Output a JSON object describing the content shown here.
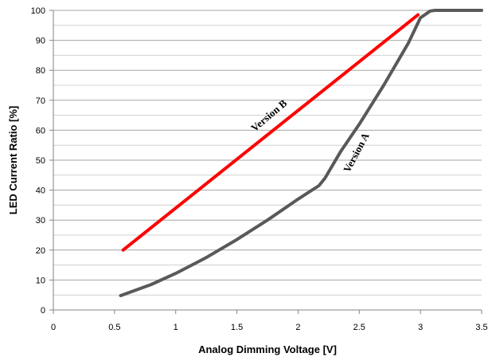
{
  "chart_data": {
    "type": "line",
    "title": "",
    "xlabel": "Analog Dimming Voltage  [V]",
    "ylabel": "LED Current Ratio [%]",
    "xlim": [
      0,
      3.5
    ],
    "ylim": [
      0,
      100
    ],
    "x_ticks": [
      "0",
      "0.5",
      "1",
      "1.5",
      "2",
      "2.5",
      "3",
      "3.5"
    ],
    "y_ticks": [
      "0",
      "10",
      "20",
      "30",
      "40",
      "50",
      "60",
      "70",
      "80",
      "90",
      "100"
    ],
    "grid": true,
    "legend": "none",
    "series": [
      {
        "name": "Version A",
        "color": "#595959",
        "x": [
          0.55,
          0.8,
          1.0,
          1.25,
          1.5,
          1.75,
          2.0,
          2.17,
          2.22,
          2.35,
          2.5,
          2.7,
          2.9,
          3.0,
          3.08,
          3.12,
          3.5
        ],
        "y": [
          4.8,
          8.5,
          12.2,
          17.5,
          23.5,
          30,
          37,
          41.5,
          44,
          53,
          62,
          75,
          89,
          97.5,
          99.8,
          100,
          100
        ]
      },
      {
        "name": "Version B",
        "color": "#ff0000",
        "x": [
          0.57,
          2.98
        ],
        "y": [
          20,
          98.5
        ]
      }
    ]
  }
}
